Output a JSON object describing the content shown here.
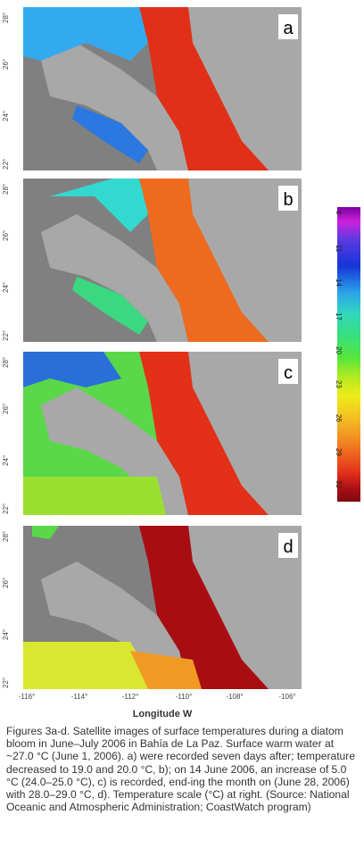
{
  "panels": [
    {
      "letter": "a",
      "lat_labels": [
        "28°",
        "26°",
        "24°",
        "22°"
      ]
    },
    {
      "letter": "b",
      "lat_labels": [
        "28°",
        "26°",
        "24°",
        "22°"
      ]
    },
    {
      "letter": "c",
      "lat_labels": [
        "28°",
        "26°",
        "24°",
        "22°"
      ]
    },
    {
      "letter": "d",
      "lat_labels": [
        "28°",
        "26°",
        "24°",
        "22°"
      ]
    }
  ],
  "lon_labels": [
    "-116°",
    "-114°",
    "-112°",
    "-110°",
    "-108°",
    "-106°"
  ],
  "x_axis_title": "Longitude W",
  "colorbar_ticks": [
    "8",
    "11",
    "14",
    "17",
    "20",
    "23",
    "26",
    "29",
    "32"
  ],
  "caption": "Figures 3a-d. Satellite images of surface temperatures during a diatom bloom in June–July 2006 in Bahía de La Paz. Surface warm water at ~27.0 °C (June 1, 2006). a) were recorded seven days after; temperature decreased to 19.0 and 20.0 °C, b); on 14 June 2006, an increase of 5.0 °C (24.0–25.0 °C), c) is recorded, end-ing the month on (June 28, 2006) with 28.0–29.0 °C, d). Temperature scale (°C) at right. (Source: National Oceanic and Atmospheric Administration; CoastWatch program)",
  "colors": {
    "land": "#a8a8a8",
    "nodata": "#808080",
    "cool_a": "#33aaf0",
    "warm_a": "#e03018",
    "cool_b": "#33d8d0",
    "warm_b": "#ee6a1e",
    "cool_c": "#5ad84a",
    "warm_c": "#e33019",
    "cool_d": "#d8e830",
    "warm_d": "#a80d12"
  }
}
